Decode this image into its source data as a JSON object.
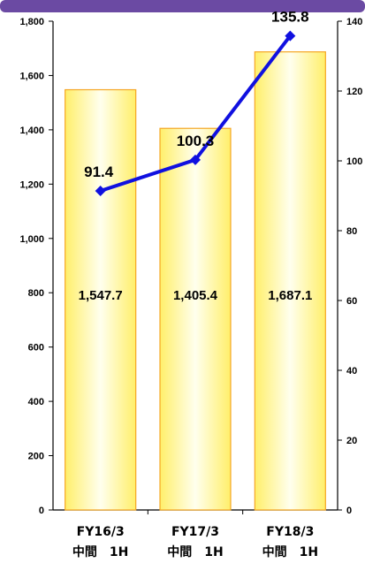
{
  "chart_data": {
    "type": "bar",
    "categories": [
      [
        "FY16/3",
        "中間　1H"
      ],
      [
        "FY17/3",
        "中間　1H"
      ],
      [
        "FY18/3",
        "中間　1H"
      ]
    ],
    "series": [
      {
        "type": "bar",
        "axis": "left",
        "values": [
          1547.7,
          1405.4,
          1687.1
        ],
        "labels": [
          "1,547.7",
          "1,405.4",
          "1,687.1"
        ]
      },
      {
        "type": "line",
        "axis": "right",
        "values": [
          91.4,
          100.3,
          135.8
        ],
        "labels": [
          "91.4",
          "100.3",
          "135.8"
        ]
      }
    ],
    "y_left": {
      "lim": [
        0,
        1800
      ],
      "ticks": [
        0,
        200,
        400,
        600,
        800,
        1000,
        1200,
        1400,
        1600,
        1800
      ],
      "tick_labels": [
        "0",
        "200",
        "400",
        "600",
        "800",
        "1,000",
        "1,200",
        "1,400",
        "1,600",
        "1,800"
      ]
    },
    "y_right": {
      "lim": [
        0,
        140
      ],
      "ticks": [
        0,
        20,
        40,
        60,
        80,
        100,
        120,
        140
      ],
      "tick_labels": [
        "0",
        "20",
        "40",
        "60",
        "80",
        "100",
        "120",
        "140"
      ]
    },
    "grid": false,
    "colors": {
      "header": "#6b4aa3",
      "bar_fill_edge": "#ffef6a",
      "bar_fill_center": "#ffffee",
      "bar_border": "#f5a623",
      "line": "#1010e0"
    }
  }
}
